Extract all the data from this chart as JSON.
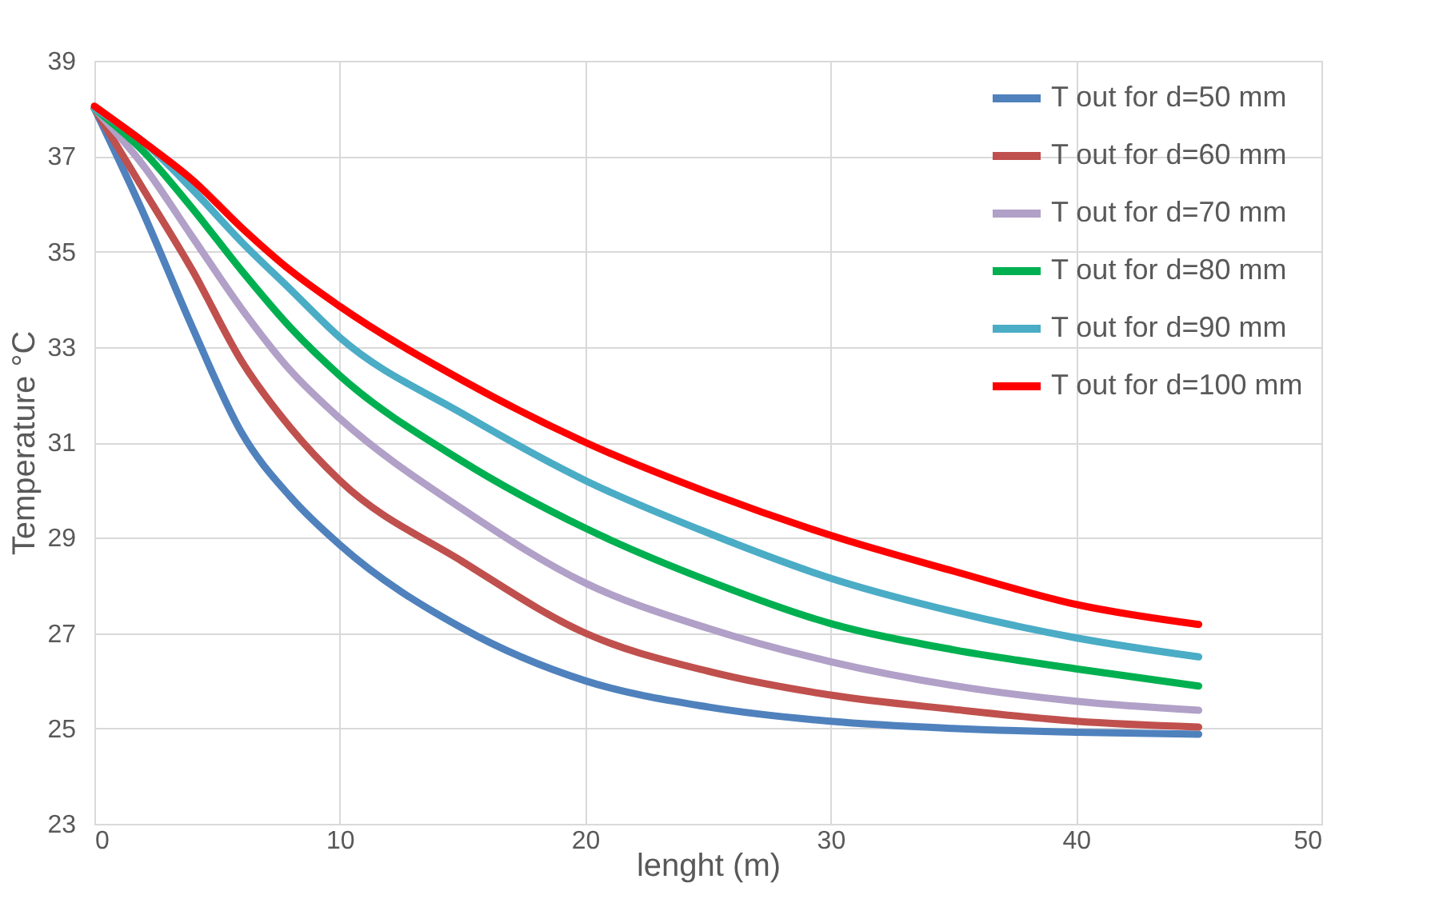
{
  "chart_data": {
    "type": "line",
    "xlabel": "lenght (m)",
    "ylabel": "Temperature °C",
    "x": [
      0,
      2,
      4,
      6,
      8,
      10,
      15,
      20,
      25,
      30,
      35,
      40,
      45
    ],
    "series": [
      {
        "name": "T out for d=50 mm",
        "color": "#4f81bd",
        "values": [
          38,
          35.8,
          33.4,
          31.2,
          29.85,
          28.85,
          27.1,
          26.0,
          25.45,
          25.15,
          25.0,
          24.92,
          24.88
        ]
      },
      {
        "name": "T out for d=60 mm",
        "color": "#c0504d",
        "values": [
          38,
          36.3,
          34.6,
          32.7,
          31.3,
          30.2,
          28.5,
          27.0,
          26.2,
          25.7,
          25.4,
          25.15,
          25.03
        ]
      },
      {
        "name": "T out for d=70 mm",
        "color": "#b1a0c7",
        "values": [
          38,
          36.8,
          35.3,
          33.8,
          32.5,
          31.5,
          29.6,
          28.05,
          27.1,
          26.4,
          25.9,
          25.57,
          25.38
        ]
      },
      {
        "name": "T out for d=80 mm",
        "color": "#00b050",
        "values": [
          38,
          37.1,
          35.9,
          34.6,
          33.4,
          32.4,
          30.6,
          29.2,
          28.1,
          27.2,
          26.65,
          26.25,
          25.89
        ]
      },
      {
        "name": "T out for d=90 mm",
        "color": "#4bacc6",
        "values": [
          38,
          37.3,
          36.3,
          35.2,
          34.2,
          33.2,
          31.6,
          30.2,
          29.1,
          28.15,
          27.45,
          26.9,
          26.5
        ]
      },
      {
        "name": "T out for  d=100 mm",
        "color": "#ff0000",
        "values": [
          38.05,
          37.3,
          36.5,
          35.5,
          34.6,
          33.85,
          32.3,
          31.0,
          29.95,
          29.05,
          28.3,
          27.6,
          27.18
        ]
      }
    ],
    "xlim": [
      0,
      50
    ],
    "xticks": [
      0,
      10,
      20,
      30,
      40,
      50
    ],
    "ylim": [
      23,
      39
    ],
    "yticks": [
      23,
      25,
      27,
      29,
      31,
      33,
      35,
      37,
      39
    ],
    "grid": true,
    "legend": "top right",
    "marker": "none",
    "line_style": "solid"
  }
}
